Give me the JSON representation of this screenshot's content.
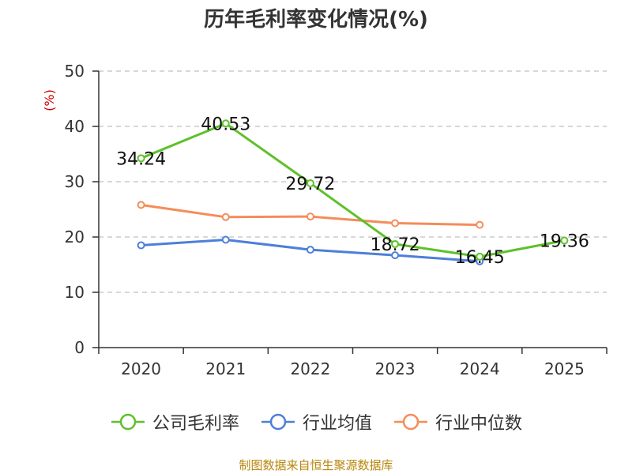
{
  "chart_data": {
    "type": "line",
    "title": "历年毛利率变化情况(%)",
    "ylabel": "(%)",
    "xlabel": "",
    "categories": [
      "2020",
      "2021",
      "2022",
      "2023",
      "2024",
      "2025"
    ],
    "ylim": [
      0,
      50
    ],
    "yticks": [
      0,
      10,
      20,
      30,
      40,
      50
    ],
    "grid": "horizontal-dashed",
    "legend_position": "bottom",
    "series": [
      {
        "name": "公司毛利率",
        "color": "#5ec12a",
        "values": [
          34.24,
          40.53,
          29.72,
          18.72,
          16.45,
          19.36
        ],
        "labels": [
          "34.24",
          "40.53",
          "29.72",
          "18.72",
          "16.45",
          "19.36"
        ],
        "show_labels": true
      },
      {
        "name": "行业均值",
        "color": "#4d7fd9",
        "values": [
          18.5,
          19.5,
          17.7,
          16.7,
          15.6,
          null
        ],
        "show_labels": false
      },
      {
        "name": "行业中位数",
        "color": "#f58c5a",
        "values": [
          25.8,
          23.6,
          23.7,
          22.5,
          22.2,
          null
        ],
        "show_labels": false
      }
    ]
  },
  "footer": {
    "source": "制图数据来自恒生聚源数据库"
  },
  "colors": {
    "axis": "#333333",
    "grid": "#cccccc",
    "ylabel": "#cc0000",
    "source": "#b8860b"
  }
}
